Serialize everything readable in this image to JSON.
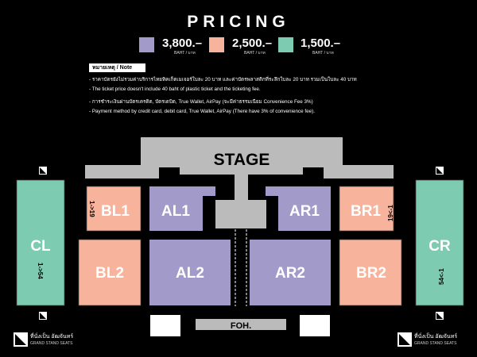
{
  "title": "PRICING",
  "prices": [
    {
      "amount": "3,800.–",
      "unit": "BAHT / บาท",
      "color": "#a29ac9"
    },
    {
      "amount": "2,500.–",
      "unit": "BAHT / บาท",
      "color": "#f7b39b"
    },
    {
      "amount": "1,500.–",
      "unit": "BAHT / บาท",
      "color": "#7dcbb0"
    }
  ],
  "note": {
    "label": "หมายเหตุ / Note",
    "lines": [
      "- ราคาบัตรยังไม่รวมค่าบริการไทยทิคเก็ตเมเจอร์ใบละ 20 บาท และค่าบัตรพลาสติกที่ระลึกใบละ 20 บาท รวมเป็นใบละ 40 บาท",
      "- The ticket price doesn't include 40 baht of plastic ticket and the ticketing fee.",
      "- การชำระเงินผ่านบัตรเครดิต, บัตรเดบิต, True Wallet, AirPay (จะมีค่าธรรมเนียม Convenience Fee 3%)",
      "- Payment method by credit card, debit card, True Wallet, AirPay (There have 3% of convenience fee)."
    ]
  },
  "stage": "STAGE",
  "foh": "FOH.",
  "zones": {
    "BL1": {
      "name": "BL1",
      "seats": "1->19"
    },
    "BR1": {
      "name": "BR1",
      "seats": "19<-1"
    },
    "AL1": {
      "name": "AL1"
    },
    "AR1": {
      "name": "AR1"
    },
    "BL2": {
      "name": "BL2"
    },
    "AL2": {
      "name": "AL2"
    },
    "AR2": {
      "name": "AR2"
    },
    "BR2": {
      "name": "BR2"
    },
    "CL": {
      "name": "CL",
      "seats": "1->54"
    },
    "CR": {
      "name": "CR",
      "seats": "54<-1"
    }
  },
  "legend": {
    "thai": "ที่นั่งเป็น อัฒจันทร์",
    "english": "GRAND STAND SEATS",
    "icon": "grandstand-icon"
  },
  "colors": {
    "purple": "#a29ac9",
    "peach": "#f7b39b",
    "green": "#7dcbb0",
    "stage_gray": "#bbbbbb"
  }
}
